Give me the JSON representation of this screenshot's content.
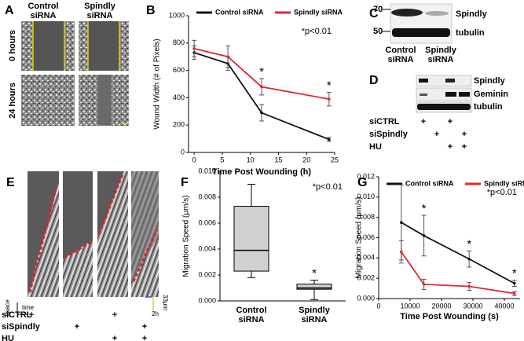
{
  "figure": {
    "panel_a": {
      "label": "A",
      "columns": [
        "Control siRNA",
        "Spindly siRNA"
      ],
      "rows": [
        "0 hours",
        "24 hours"
      ]
    },
    "panel_c": {
      "label": "C",
      "markers": [
        "70",
        "50"
      ],
      "bands": [
        "Spindly",
        "tubulin"
      ],
      "lanes": [
        "Control siRNA",
        "Spindly siRNA"
      ]
    },
    "panel_d": {
      "label": "D",
      "bands": [
        "Spindly",
        "Geminin",
        "tubulin"
      ],
      "conditions": [
        {
          "name": "siCTRL",
          "marks": [
            "+",
            null,
            "+",
            null
          ]
        },
        {
          "name": "siSpindly",
          "marks": [
            null,
            "+",
            null,
            "+"
          ]
        },
        {
          "name": "HU",
          "marks": [
            null,
            null,
            "+",
            "+"
          ]
        }
      ]
    },
    "panel_e": {
      "label": "E",
      "space": "space",
      "time": "time",
      "scale_space": "33μm",
      "scale_time": "2h",
      "conditions": [
        {
          "name": "siCTRL",
          "marks": [
            "+",
            null,
            "+",
            null
          ]
        },
        {
          "name": "siSpindly",
          "marks": [
            null,
            "+",
            null,
            "+"
          ]
        },
        {
          "name": "HU",
          "marks": [
            null,
            null,
            "+",
            "+"
          ]
        }
      ]
    }
  },
  "chart_data": [
    {
      "type": "line",
      "label": "B",
      "x_label": "Time Post Wounding (h)",
      "y_label": "Wound Width (# of Pixels)",
      "note": "*p<0.01",
      "legend": "top",
      "x": [
        0,
        6,
        12,
        24
      ],
      "xlim": [
        -1,
        25
      ],
      "xticks": [
        0,
        5,
        10,
        15,
        20,
        25
      ],
      "ylim": [
        0,
        1000
      ],
      "yticks": [
        0,
        200,
        400,
        600,
        800,
        1000
      ],
      "series": [
        {
          "name": "Control siRNA",
          "color": "#111111",
          "values": [
            730,
            650,
            290,
            95
          ],
          "errors": [
            50,
            50,
            60,
            15
          ],
          "point_labels": [
            null,
            null,
            null,
            null
          ]
        },
        {
          "name": "Spindly siRNA",
          "color": "#e0282e",
          "values": [
            760,
            700,
            480,
            390
          ],
          "errors": [
            60,
            80,
            60,
            50
          ],
          "point_labels": [
            null,
            null,
            "*",
            "*"
          ]
        }
      ]
    },
    {
      "type": "box",
      "label": "F",
      "y_label": "Migration Speed (μm/s)",
      "note": "*p<0.01",
      "categories": [
        "Control siRNA",
        "Spindly siRNA"
      ],
      "color": "#d0d0d0",
      "boxes": [
        {
          "min": 0.0018,
          "q1": 0.0023,
          "median": 0.0039,
          "q3": 0.0073,
          "max": 0.009
        },
        {
          "min": 0.0001,
          "q1": 0.0009,
          "median": 0.001,
          "q3": 0.0013,
          "max": 0.0016
        }
      ],
      "box_labels": [
        null,
        "*"
      ],
      "ylim": [
        0,
        0.01
      ],
      "yticks": [
        {
          "value": 0,
          "label": "0.000"
        },
        {
          "value": 0.002,
          "label": "0.002"
        },
        {
          "value": 0.004,
          "label": "0.004"
        },
        {
          "value": 0.006,
          "label": "0.006"
        },
        {
          "value": 0.008,
          "label": "0.008"
        },
        {
          "value": 0.01,
          "label": "0.010"
        }
      ]
    },
    {
      "type": "line",
      "label": "G",
      "x_label": "Time Post Wounding (s)",
      "y_label": "Migration Speed (μm/s)",
      "note": "*p<0.01",
      "legend": "top",
      "x": [
        7200,
        14400,
        28800,
        43200
      ],
      "xlim": [
        0,
        45000
      ],
      "xticks": [
        0,
        10000,
        20000,
        30000,
        40000
      ],
      "ylim": [
        0,
        0.012
      ],
      "yticks": [
        {
          "value": 0,
          "label": "0.000"
        },
        {
          "value": 0.002,
          "label": "0.002"
        },
        {
          "value": 0.004,
          "label": "0.004"
        },
        {
          "value": 0.006,
          "label": "0.006"
        },
        {
          "value": 0.008,
          "label": "0.008"
        },
        {
          "value": 0.01,
          "label": "0.010"
        },
        {
          "value": 0.012,
          "label": "0.012"
        }
      ],
      "series": [
        {
          "name": "Control siRNA",
          "color": "#111111",
          "values": [
            0.0075,
            0.0062,
            0.0039,
            0.0015
          ],
          "errors": [
            0.0037,
            0.002,
            0.0008,
            0.0003
          ],
          "point_labels": [
            null,
            "*",
            "*",
            "*"
          ]
        },
        {
          "name": "Spindly siRNA",
          "color": "#e0282e",
          "values": [
            0.0046,
            0.0014,
            0.0012,
            0.0005
          ],
          "errors": [
            0.0011,
            0.0005,
            0.0004,
            0.0002
          ],
          "point_labels": [
            null,
            null,
            null,
            null
          ]
        }
      ]
    }
  ]
}
